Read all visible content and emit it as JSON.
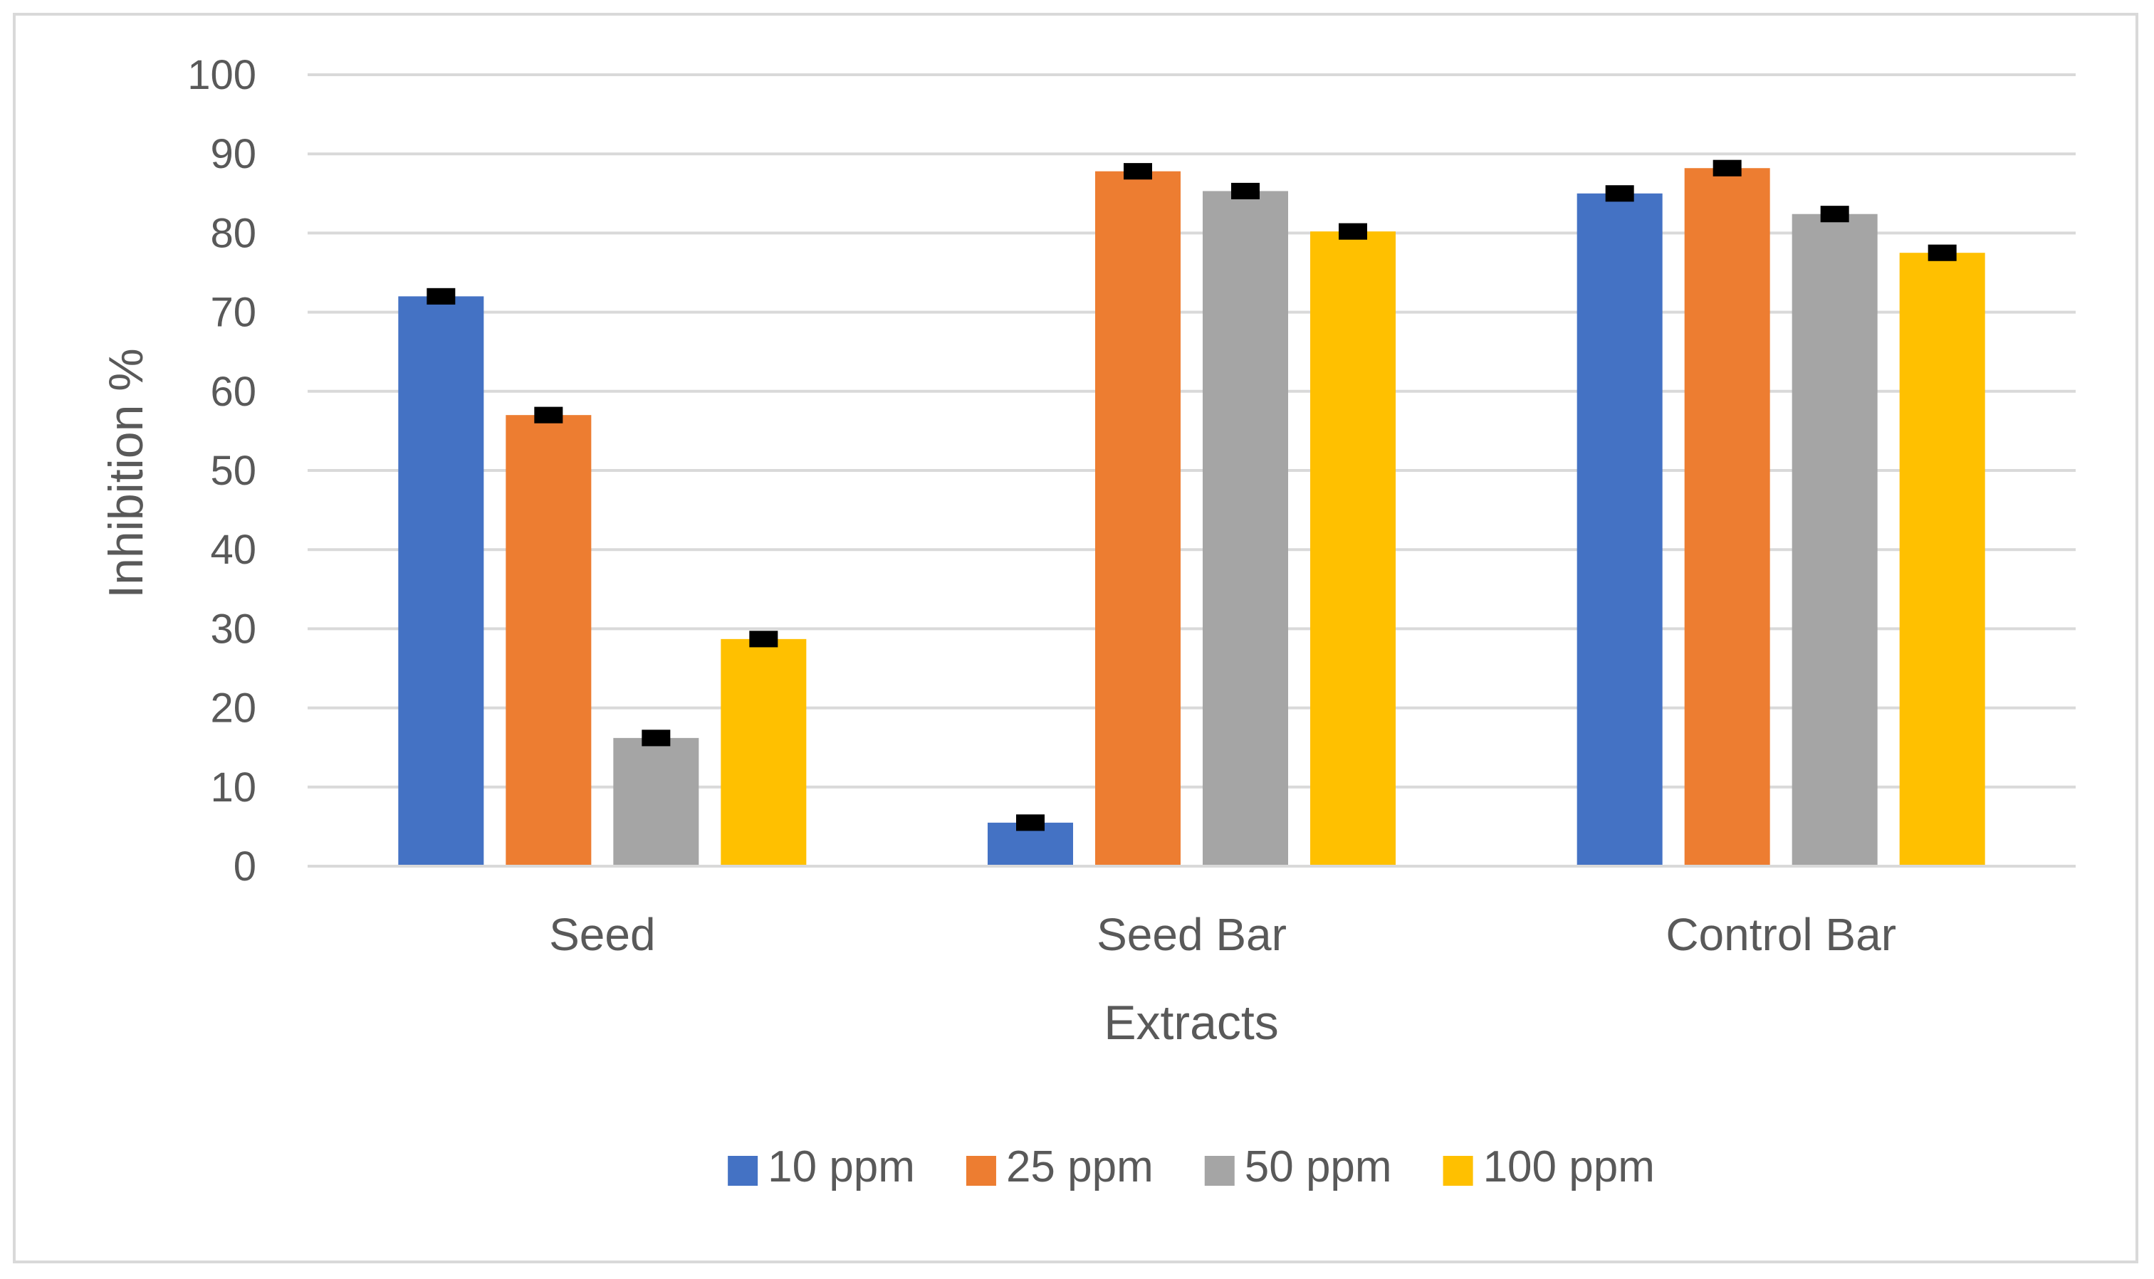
{
  "chart_data": {
    "type": "bar",
    "title": "",
    "xlabel": "Extracts",
    "ylabel": "Inhibition %",
    "ylim": [
      0,
      100
    ],
    "yticks": [
      0,
      10,
      20,
      30,
      40,
      50,
      60,
      70,
      80,
      90,
      100
    ],
    "grid": true,
    "legend_position": "bottom",
    "categories": [
      "Seed",
      "Seed Bar",
      "Control Bar"
    ],
    "series": [
      {
        "name": "10 ppm",
        "color": "#4472C4",
        "values": [
          72.0,
          5.5,
          85.0
        ],
        "errors": [
          0.5,
          0.5,
          0.5
        ]
      },
      {
        "name": "25 ppm",
        "color": "#ED7D31",
        "values": [
          57.0,
          87.8,
          88.2
        ],
        "errors": [
          0.5,
          0.5,
          0.5
        ]
      },
      {
        "name": "50 ppm",
        "color": "#A5A5A5",
        "values": [
          16.2,
          85.3,
          82.4
        ],
        "errors": [
          0.5,
          0.5,
          0.5
        ]
      },
      {
        "name": "100 ppm",
        "color": "#FFC000",
        "values": [
          28.7,
          80.2,
          77.5
        ],
        "errors": [
          0.5,
          0.5,
          0.5
        ]
      }
    ]
  }
}
